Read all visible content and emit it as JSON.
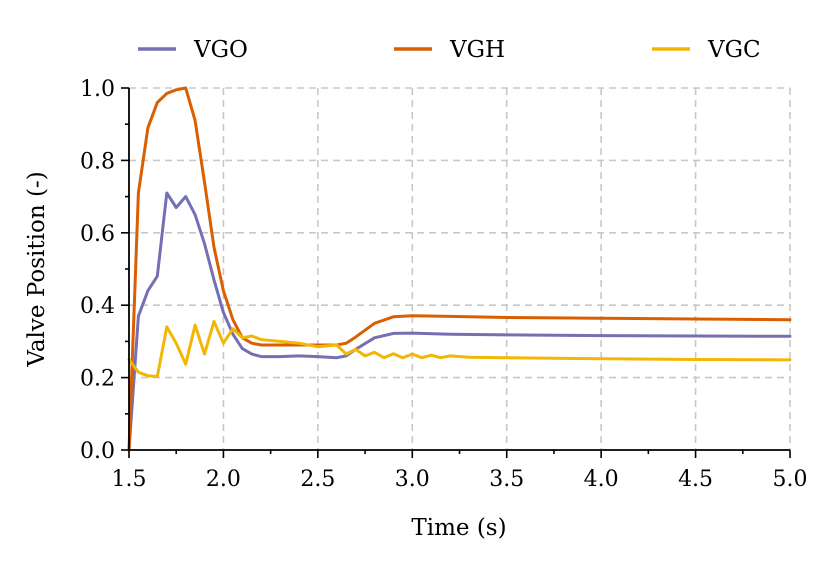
{
  "chart_data": {
    "type": "line",
    "title": "",
    "xlabel": "Time (s)",
    "ylabel": "Valve Position (-)",
    "xlim": [
      1.5,
      5.0
    ],
    "ylim": [
      0.0,
      1.0
    ],
    "xticks": [
      "1.5",
      "2.0",
      "2.5",
      "3.0",
      "3.5",
      "4.0",
      "4.5",
      "5.0"
    ],
    "yticks": [
      "0.0",
      "0.2",
      "0.4",
      "0.6",
      "0.8",
      "1.0"
    ],
    "grid": true,
    "legend_position": "top",
    "series": [
      {
        "name": "VGO",
        "color": "#7570b3",
        "x": [
          1.5,
          1.55,
          1.6,
          1.65,
          1.7,
          1.75,
          1.8,
          1.85,
          1.9,
          1.95,
          2.0,
          2.05,
          2.1,
          2.15,
          2.2,
          2.3,
          2.4,
          2.5,
          2.6,
          2.65,
          2.7,
          2.8,
          2.9,
          3.0,
          3.2,
          3.5,
          4.0,
          4.5,
          5.0
        ],
        "y": [
          0.0,
          0.37,
          0.44,
          0.48,
          0.71,
          0.67,
          0.7,
          0.65,
          0.57,
          0.47,
          0.38,
          0.32,
          0.28,
          0.265,
          0.258,
          0.258,
          0.26,
          0.258,
          0.255,
          0.26,
          0.278,
          0.31,
          0.322,
          0.323,
          0.32,
          0.318,
          0.316,
          0.315,
          0.314
        ]
      },
      {
        "name": "VGH",
        "color": "#d95f02",
        "x": [
          1.5,
          1.55,
          1.6,
          1.65,
          1.7,
          1.75,
          1.8,
          1.85,
          1.9,
          1.95,
          2.0,
          2.05,
          2.1,
          2.15,
          2.2,
          2.3,
          2.4,
          2.5,
          2.6,
          2.65,
          2.7,
          2.8,
          2.9,
          3.0,
          3.2,
          3.5,
          4.0,
          4.5,
          5.0
        ],
        "y": [
          0.0,
          0.71,
          0.89,
          0.96,
          0.985,
          0.995,
          1.0,
          0.91,
          0.74,
          0.56,
          0.44,
          0.36,
          0.31,
          0.295,
          0.29,
          0.29,
          0.29,
          0.29,
          0.29,
          0.295,
          0.312,
          0.35,
          0.368,
          0.371,
          0.369,
          0.366,
          0.364,
          0.362,
          0.36
        ]
      },
      {
        "name": "VGC",
        "color": "#f2b705",
        "x": [
          1.5,
          1.55,
          1.6,
          1.65,
          1.7,
          1.75,
          1.8,
          1.85,
          1.9,
          1.95,
          2.0,
          2.05,
          2.1,
          2.15,
          2.2,
          2.3,
          2.4,
          2.5,
          2.6,
          2.65,
          2.7,
          2.75,
          2.8,
          2.85,
          2.9,
          2.95,
          3.0,
          3.05,
          3.1,
          3.15,
          3.2,
          3.3,
          3.5,
          4.0,
          4.5,
          5.0
        ],
        "y": [
          0.25,
          0.215,
          0.205,
          0.203,
          0.34,
          0.295,
          0.237,
          0.345,
          0.265,
          0.355,
          0.295,
          0.335,
          0.31,
          0.315,
          0.305,
          0.3,
          0.295,
          0.285,
          0.29,
          0.265,
          0.278,
          0.26,
          0.27,
          0.255,
          0.266,
          0.255,
          0.265,
          0.255,
          0.262,
          0.255,
          0.26,
          0.256,
          0.255,
          0.252,
          0.25,
          0.249
        ]
      }
    ]
  }
}
